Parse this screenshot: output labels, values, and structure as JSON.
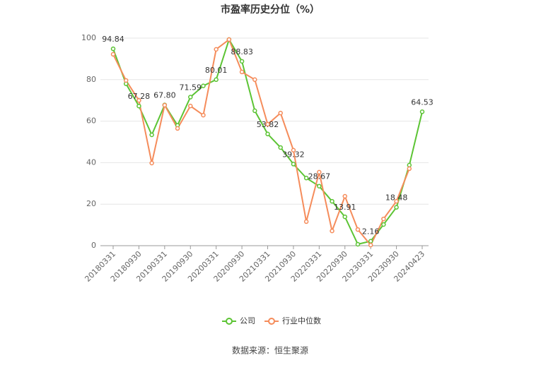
{
  "chart_data": {
    "type": "line",
    "title": "市盈率历史分位（%）",
    "categories": [
      "20180331",
      null,
      "20180930",
      null,
      "20190331",
      null,
      "20190930",
      null,
      "20200331",
      null,
      "20200930",
      null,
      "20210331",
      null,
      "20210930",
      null,
      "20220331",
      null,
      "20220930",
      null,
      "20230331",
      null,
      "20230930",
      null,
      "20240423"
    ],
    "series": [
      {
        "name": "公司",
        "color": "#5cc434",
        "values": [
          94.84,
          78,
          67.28,
          53.4,
          67.8,
          58,
          71.59,
          77,
          80.01,
          99.3,
          88.83,
          65,
          53.82,
          47.3,
          39.32,
          32.6,
          28.67,
          21.4,
          13.91,
          0.7,
          2.16,
          10.2,
          18.48,
          38.8,
          64.53
        ],
        "value_labels": [
          "94.84",
          null,
          "67.28",
          null,
          "67.80",
          null,
          "71.59",
          null,
          "80.01",
          null,
          "88.83",
          null,
          "53.82",
          null,
          "39.32",
          null,
          "28.67",
          null,
          "13.91",
          null,
          "2.16",
          null,
          "18.48",
          null,
          "64.53"
        ]
      },
      {
        "name": "行业中位数",
        "color": "#f58c5b",
        "values": [
          92.2,
          79.6,
          70,
          39.8,
          67.7,
          56.5,
          67.3,
          62.9,
          94.6,
          99.3,
          83.7,
          80,
          58.5,
          63.9,
          46,
          11.6,
          35.4,
          7.1,
          23.8,
          7.8,
          0.3,
          12.9,
          21.4,
          37.1,
          null
        ]
      }
    ],
    "ylim": [
      0,
      100
    ],
    "yticks": [
      0,
      20,
      40,
      60,
      80,
      100
    ],
    "grid": true,
    "source": "数据来源：恒生聚源"
  }
}
